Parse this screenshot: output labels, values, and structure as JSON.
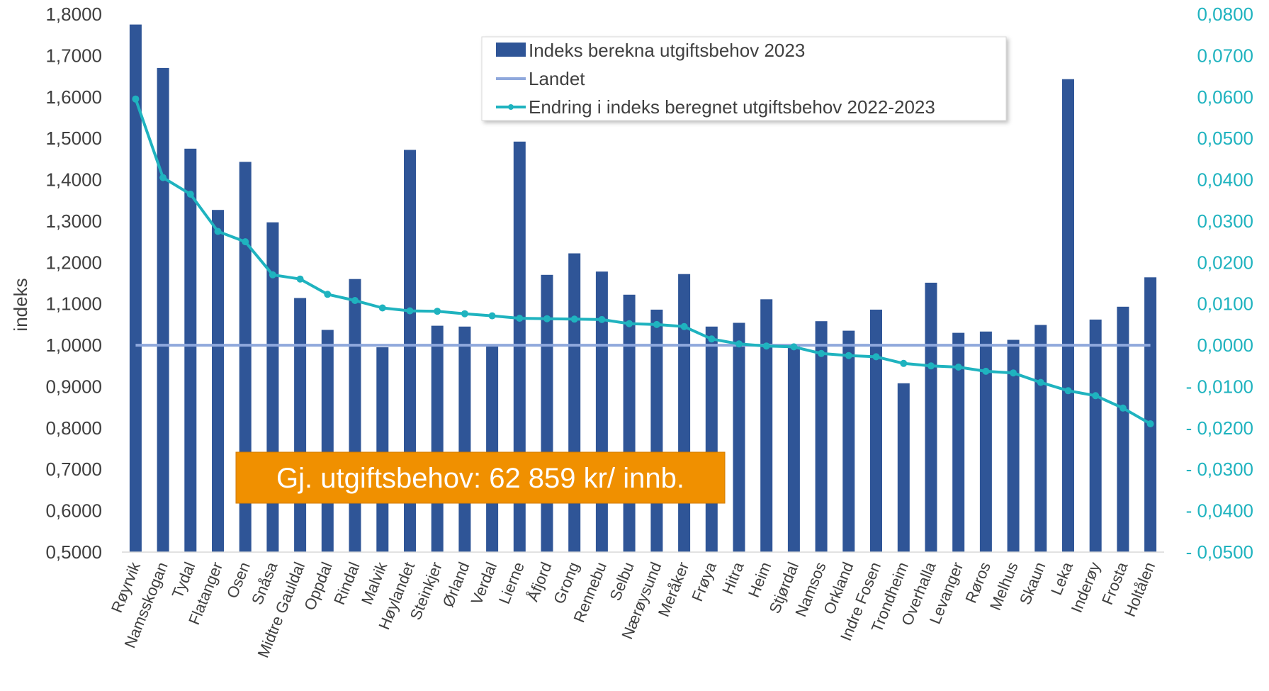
{
  "chart_data": {
    "type": "bar+line",
    "categories": [
      "Røyrvik",
      "Namsskogan",
      "Tydal",
      "Flatanger",
      "Osen",
      "Snåsa",
      "Midtre Gauldal",
      "Oppdal",
      "Rindal",
      "Malvik",
      "Høylandet",
      "Steinkjer",
      "Ørland",
      "Verdal",
      "Lierne",
      "Åfjord",
      "Grong",
      "Rennebu",
      "Selbu",
      "Nærøysund",
      "Meråker",
      "Frøya",
      "Hitra",
      "Heim",
      "Stjørdal",
      "Namsos",
      "Orkland",
      "Indre Fosen",
      "Trondheim",
      "Overhalla",
      "Levanger",
      "Røros",
      "Melhus",
      "Skaun",
      "Leka",
      "Inderøy",
      "Frosta",
      "Holtålen"
    ],
    "series": [
      {
        "name": "Indeks berekna utgiftsbehov 2023",
        "type": "bar",
        "axis": "left",
        "color": "#2f5597",
        "values": [
          1.775,
          1.67,
          1.475,
          1.327,
          1.443,
          1.297,
          1.114,
          1.037,
          1.16,
          0.995,
          1.472,
          1.047,
          1.045,
          0.999,
          1.492,
          1.17,
          1.222,
          1.178,
          1.122,
          1.086,
          1.172,
          1.045,
          1.054,
          1.111,
          1.001,
          1.058,
          1.035,
          1.086,
          0.908,
          1.151,
          1.03,
          1.033,
          1.013,
          1.049,
          1.643,
          1.062,
          1.093,
          1.164
        ]
      },
      {
        "name": "Landet",
        "type": "line",
        "axis": "left",
        "color": "#8fa8dc",
        "values": [
          1.0,
          1.0,
          1.0,
          1.0,
          1.0,
          1.0,
          1.0,
          1.0,
          1.0,
          1.0,
          1.0,
          1.0,
          1.0,
          1.0,
          1.0,
          1.0,
          1.0,
          1.0,
          1.0,
          1.0,
          1.0,
          1.0,
          1.0,
          1.0,
          1.0,
          1.0,
          1.0,
          1.0,
          1.0,
          1.0,
          1.0,
          1.0,
          1.0,
          1.0,
          1.0,
          1.0,
          1.0,
          1.0
        ]
      },
      {
        "name": "Endring i indeks beregnet utgiftsbehov 2022-2023",
        "type": "line-markers",
        "axis": "right",
        "color": "#1fb3bf",
        "values": [
          0.0595,
          0.0405,
          0.0365,
          0.0275,
          0.025,
          0.017,
          0.016,
          0.0123,
          0.0108,
          0.009,
          0.0083,
          0.0082,
          0.0076,
          0.0071,
          0.0065,
          0.0064,
          0.0063,
          0.0062,
          0.0052,
          0.005,
          0.0045,
          0.0015,
          0.0003,
          -0.0002,
          -0.0004,
          -0.002,
          -0.0025,
          -0.0028,
          -0.0044,
          -0.005,
          -0.0053,
          -0.0063,
          -0.0067,
          -0.009,
          -0.011,
          -0.0122,
          -0.0152,
          -0.019
        ]
      }
    ],
    "ylabel": "indeks",
    "ylim": [
      0.5,
      1.8
    ],
    "y_ticks": [
      "1,8000",
      "1,7000",
      "1,6000",
      "1,5000",
      "1,4000",
      "1,3000",
      "1,2000",
      "1,1000",
      "1,0000",
      "0,9000",
      "0,8000",
      "0,7000",
      "0,6000",
      "0,5000"
    ],
    "y2lim": [
      -0.05,
      0.08
    ],
    "y2_ticks": [
      "0,0800",
      "0,0700",
      "0,0600",
      "0,0500",
      "0,0400",
      "0,0300",
      "0,0200",
      "0,0100",
      "0,0000",
      "- 0,0100",
      "- 0,0200",
      "- 0,0300",
      "- 0,0400",
      "- 0,0500"
    ],
    "grid": false,
    "legend_position": "top-center",
    "annotation": {
      "text": "Gj. utgiftsbehov: 62 859 kr/ innb.",
      "background": "#f09000"
    }
  }
}
